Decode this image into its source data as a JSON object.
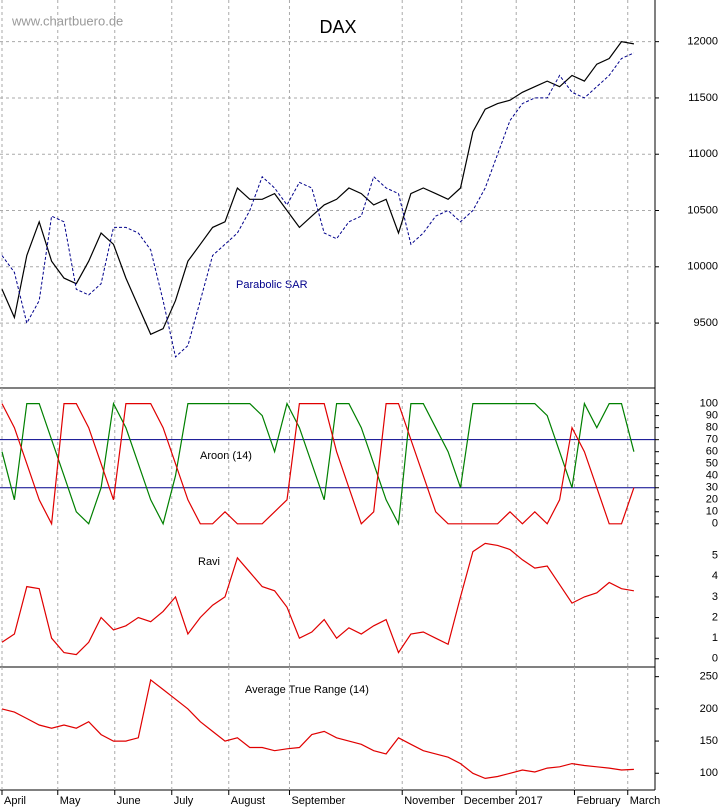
{
  "chart_data": [
    {
      "type": "line",
      "title": "DAX",
      "watermark": "www.chartbuero.de",
      "ylim": [
        8950,
        12370
      ],
      "yticks": [
        9500,
        10000,
        10500,
        11000,
        11500,
        12000
      ],
      "grid": true,
      "series": [
        {
          "color": "#000000",
          "style": "solid",
          "values": [
            9800,
            9550,
            10100,
            10400,
            10050,
            9900,
            9850,
            10050,
            10300,
            10200,
            9900,
            9650,
            9400,
            9450,
            9700,
            10050,
            10200,
            10350,
            10400,
            10700,
            10600,
            10600,
            10650,
            10500,
            10350,
            10450,
            10550,
            10600,
            10700,
            10650,
            10550,
            10600,
            10300,
            10650,
            10700,
            10650,
            10600,
            10700,
            11200,
            11400,
            11450,
            11480,
            11550,
            11600,
            11650,
            11600,
            11700,
            11650,
            11800,
            11850,
            12000,
            11980
          ]
        },
        {
          "name": "Parabolic SAR",
          "color": "#00008b",
          "style": "dashed",
          "values": [
            10100,
            9950,
            9500,
            9700,
            10450,
            10400,
            9800,
            9750,
            9850,
            10350,
            10350,
            10300,
            10150,
            9700,
            9200,
            9300,
            9700,
            10100,
            10200,
            10300,
            10500,
            10800,
            10700,
            10550,
            10750,
            10700,
            10300,
            10250,
            10400,
            10450,
            10800,
            10700,
            10650,
            10200,
            10300,
            10450,
            10500,
            10400,
            10500,
            10700,
            11000,
            11300,
            11450,
            11500,
            11500,
            11700,
            11550,
            11500,
            11600,
            11700,
            11850,
            11900
          ]
        }
      ]
    },
    {
      "type": "line",
      "title": "Aroon (14)",
      "ylim": [
        -6,
        113
      ],
      "yticks": [
        0,
        10,
        20,
        30,
        40,
        50,
        60,
        70,
        80,
        90,
        100
      ],
      "grid": false,
      "reference_lines": [
        30,
        70
      ],
      "reference_color": "#00008b",
      "series": [
        {
          "color": "#008000",
          "style": "solid",
          "values": [
            60,
            20,
            100,
            100,
            70,
            40,
            10,
            0,
            30,
            100,
            80,
            50,
            20,
            0,
            40,
            100,
            100,
            100,
            100,
            100,
            100,
            90,
            60,
            100,
            80,
            50,
            20,
            100,
            100,
            80,
            50,
            20,
            0,
            100,
            100,
            80,
            60,
            30,
            100,
            100,
            100,
            100,
            100,
            100,
            90,
            60,
            30,
            100,
            80,
            100,
            100,
            60
          ]
        },
        {
          "color": "#e00000",
          "style": "solid",
          "values": [
            100,
            80,
            50,
            20,
            0,
            100,
            100,
            80,
            50,
            20,
            100,
            100,
            100,
            80,
            50,
            20,
            0,
            0,
            10,
            0,
            0,
            0,
            10,
            20,
            100,
            100,
            100,
            60,
            30,
            0,
            10,
            100,
            100,
            70,
            40,
            10,
            0,
            0,
            0,
            0,
            0,
            10,
            0,
            10,
            0,
            20,
            80,
            60,
            30,
            0,
            0,
            30
          ]
        }
      ]
    },
    {
      "type": "line",
      "title": "Ravi",
      "ylim": [
        -0.4,
        6.2
      ],
      "yticks": [
        0,
        1,
        2,
        3,
        4,
        5
      ],
      "grid": false,
      "series": [
        {
          "color": "#e00000",
          "style": "solid",
          "values": [
            0.8,
            1.2,
            3.5,
            3.4,
            1.0,
            0.3,
            0.2,
            0.8,
            2.0,
            1.4,
            1.6,
            2.0,
            1.8,
            2.3,
            3.0,
            1.2,
            2.0,
            2.6,
            3.0,
            4.9,
            4.2,
            3.5,
            3.3,
            2.5,
            1.0,
            1.3,
            1.9,
            1.0,
            1.5,
            1.2,
            1.6,
            1.9,
            0.3,
            1.2,
            1.3,
            1.0,
            0.7,
            3.0,
            5.2,
            5.6,
            5.5,
            5.3,
            4.8,
            4.4,
            4.5,
            3.6,
            2.7,
            3.0,
            3.2,
            3.7,
            3.4,
            3.3
          ]
        }
      ]
    },
    {
      "type": "line",
      "title": "Average True Range (14)",
      "ylim": [
        74,
        265
      ],
      "yticks": [
        100,
        150,
        200,
        250
      ],
      "grid": false,
      "x": [
        0,
        1,
        2,
        3,
        4,
        5,
        6,
        7,
        8,
        9,
        10,
        11,
        12,
        13,
        14,
        15,
        16,
        17,
        18,
        19,
        20,
        21,
        22,
        23,
        24,
        25,
        26,
        27,
        28,
        29,
        30,
        31,
        32,
        33,
        34,
        35,
        36,
        37,
        38,
        39,
        40,
        41,
        42,
        43,
        44,
        45,
        46,
        47,
        48,
        49,
        50,
        51
      ],
      "xlim": [
        0,
        52.7
      ],
      "xticks": [
        {
          "value": 0,
          "label": "April"
        },
        {
          "value": 4.5,
          "label": "May"
        },
        {
          "value": 9.1,
          "label": "June"
        },
        {
          "value": 13.7,
          "label": "July"
        },
        {
          "value": 18.3,
          "label": "August"
        },
        {
          "value": 23.2,
          "label": "September"
        },
        {
          "value": 32.3,
          "label": "November"
        },
        {
          "value": 37.1,
          "label": "December"
        },
        {
          "value": 41.5,
          "label": "2017"
        },
        {
          "value": 46.2,
          "label": "February"
        },
        {
          "value": 50.5,
          "label": "March"
        }
      ],
      "series": [
        {
          "color": "#e00000",
          "style": "solid",
          "values": [
            200,
            195,
            185,
            175,
            170,
            175,
            170,
            180,
            160,
            150,
            150,
            155,
            245,
            230,
            215,
            200,
            180,
            165,
            150,
            155,
            140,
            140,
            135,
            138,
            140,
            160,
            165,
            155,
            150,
            145,
            135,
            130,
            155,
            145,
            135,
            130,
            125,
            115,
            100,
            92,
            95,
            100,
            105,
            102,
            108,
            110,
            115,
            112,
            110,
            108,
            105,
            106
          ]
        }
      ]
    }
  ]
}
